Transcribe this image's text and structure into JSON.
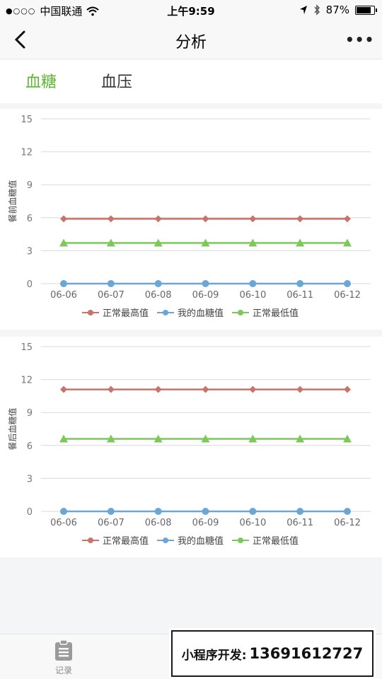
{
  "status": {
    "carrier": "中国联通",
    "time": "上午9:59",
    "battery_text": "87%",
    "battery_level": 0.87
  },
  "nav": {
    "title": "分析"
  },
  "tabs": [
    {
      "label": "血糖",
      "active": true
    },
    {
      "label": "血压",
      "active": false
    }
  ],
  "colors": {
    "accent": "#5fb434",
    "red": "#c9736a",
    "blue": "#6aa6d6",
    "green": "#7cc85a"
  },
  "chart_data": [
    {
      "type": "line",
      "ylabel": "餐前血糖值",
      "ylim": [
        0,
        15
      ],
      "yticks": [
        0,
        3,
        6,
        9,
        12,
        15
      ],
      "categories": [
        "06-06",
        "06-07",
        "06-08",
        "06-09",
        "06-10",
        "06-11",
        "06-12"
      ],
      "series": [
        {
          "name": "正常最高值",
          "color": "#c9736a",
          "marker": "diamond",
          "values": [
            5.9,
            5.9,
            5.9,
            5.9,
            5.9,
            5.9,
            5.9
          ]
        },
        {
          "name": "我的血糖值",
          "color": "#6aa6d6",
          "marker": "circle",
          "values": [
            0,
            0,
            0,
            0,
            0,
            0,
            0
          ]
        },
        {
          "name": "正常最低值",
          "color": "#7cc85a",
          "marker": "triangle",
          "values": [
            3.7,
            3.7,
            3.7,
            3.7,
            3.7,
            3.7,
            3.7
          ]
        }
      ],
      "legend": "bottom-center",
      "grid": true
    },
    {
      "type": "line",
      "ylabel": "餐后血糖值",
      "ylim": [
        0,
        15
      ],
      "yticks": [
        0,
        3,
        6,
        9,
        12,
        15
      ],
      "categories": [
        "06-06",
        "06-07",
        "06-08",
        "06-09",
        "06-10",
        "06-11",
        "06-12"
      ],
      "series": [
        {
          "name": "正常最高值",
          "color": "#c9736a",
          "marker": "diamond",
          "values": [
            11.1,
            11.1,
            11.1,
            11.1,
            11.1,
            11.1,
            11.1
          ]
        },
        {
          "name": "我的血糖值",
          "color": "#6aa6d6",
          "marker": "circle",
          "values": [
            0,
            0,
            0,
            0,
            0,
            0,
            0
          ]
        },
        {
          "name": "正常最低值",
          "color": "#7cc85a",
          "marker": "triangle",
          "values": [
            6.6,
            6.6,
            6.6,
            6.6,
            6.6,
            6.6,
            6.6
          ]
        }
      ],
      "legend": "bottom-center",
      "grid": true
    }
  ],
  "bottom_nav": {
    "items": [
      {
        "label": "记录",
        "icon": "clipboard-icon"
      }
    ]
  },
  "promo": {
    "label": "小程序开发:",
    "phone": "13691612727"
  }
}
